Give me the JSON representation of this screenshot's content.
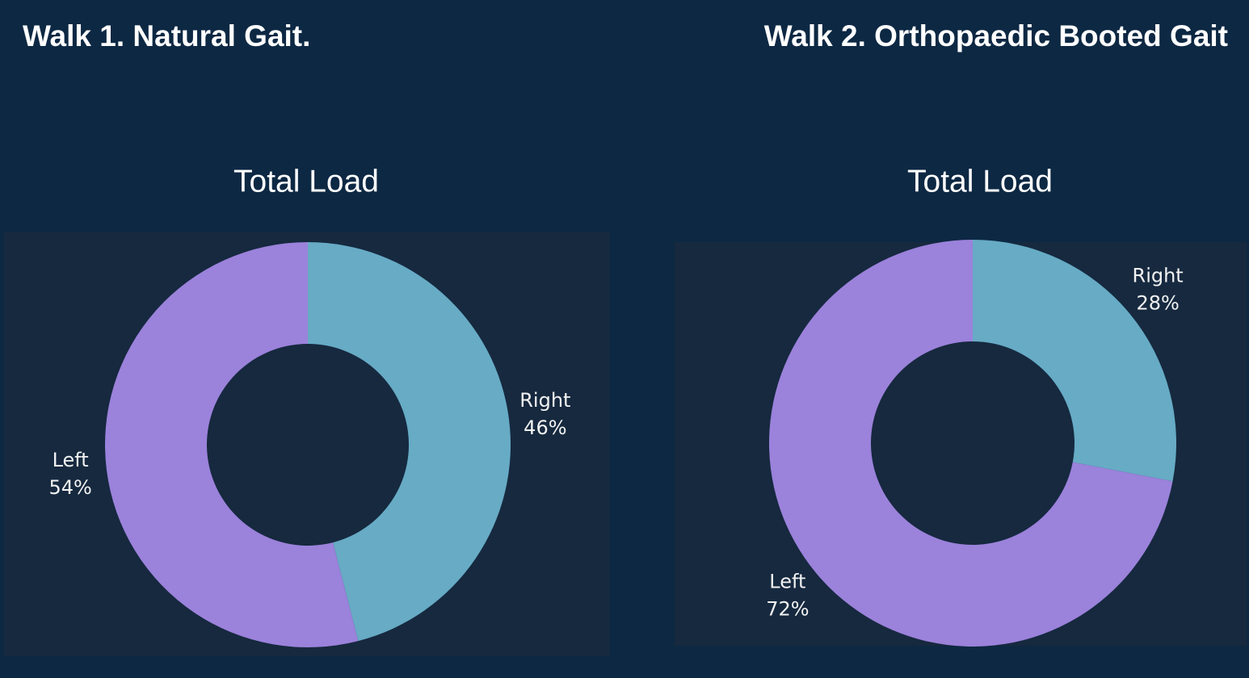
{
  "chart_data": [
    {
      "type": "donut",
      "heading": "Walk 1. Natural Gait.",
      "title": "Total Load",
      "categories": [
        "Right",
        "Left"
      ],
      "values": [
        46,
        54
      ],
      "value_labels": [
        "46%",
        "54%"
      ],
      "colors": [
        "#67abc5",
        "#9b82db"
      ]
    },
    {
      "type": "donut",
      "heading": "Walk 2. Orthopaedic Booted Gait",
      "title": "Total Load",
      "categories": [
        "Right",
        "Left"
      ],
      "values": [
        28,
        72
      ],
      "value_labels": [
        "28%",
        "72%"
      ],
      "colors": [
        "#67abc5",
        "#9b82db"
      ]
    }
  ]
}
